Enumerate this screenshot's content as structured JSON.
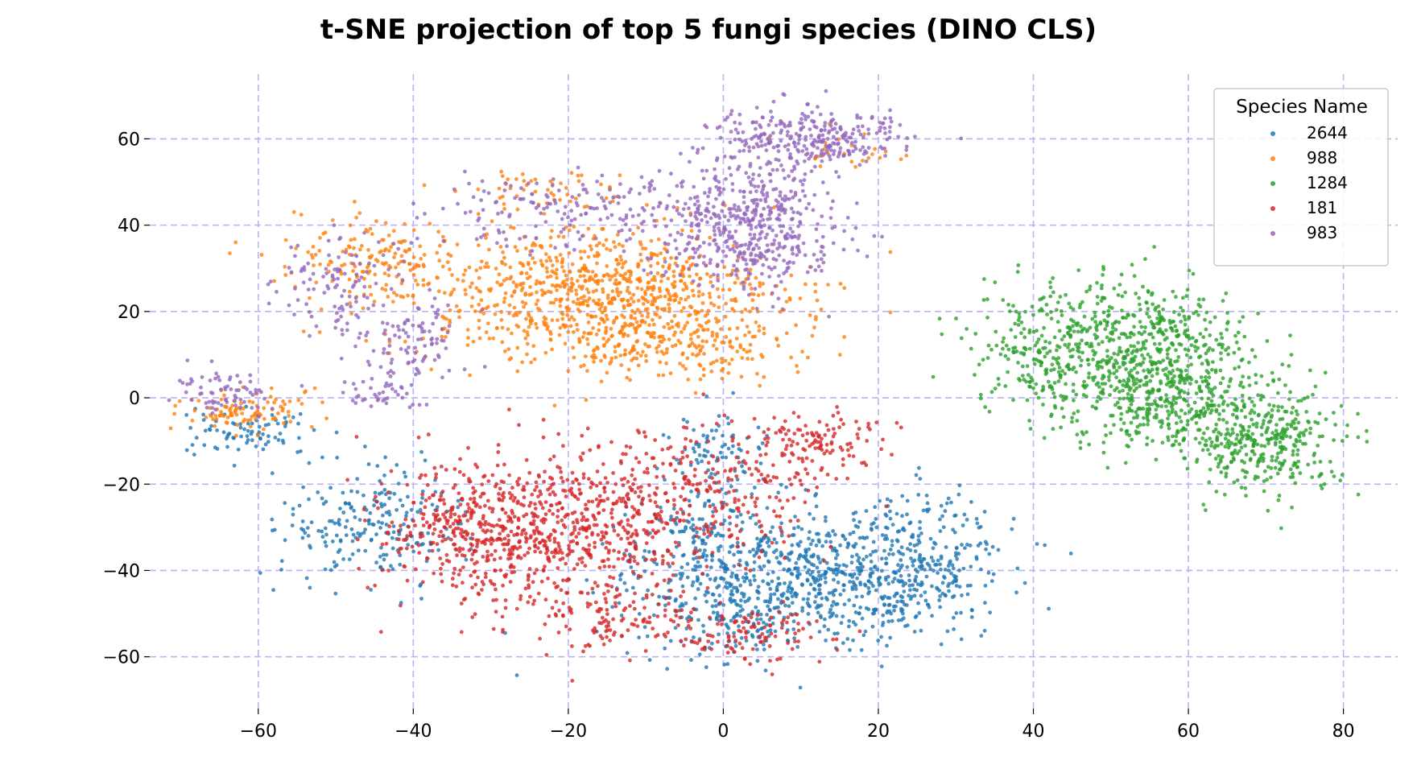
{
  "chart_data": {
    "type": "scatter",
    "title": "t-SNE projection of top 5 fungi species (DINO CLS)",
    "xlabel": "",
    "ylabel": "",
    "xlim": [
      -74,
      87
    ],
    "ylim": [
      -72,
      75
    ],
    "x_ticks": [
      -60,
      -40,
      -20,
      0,
      20,
      40,
      60,
      80
    ],
    "y_ticks": [
      -60,
      -40,
      -20,
      0,
      20,
      40,
      60
    ],
    "grid": true,
    "legend": {
      "title": "Species Name",
      "placement": "top-right"
    },
    "series": [
      {
        "name": "2644",
        "color": "#1f77b4",
        "clusters": [
          {
            "center": [
              12,
              -42
            ],
            "spread": [
              12,
              9
            ],
            "count": 650
          },
          {
            "center": [
              26,
              -36
            ],
            "spread": [
              6,
              9
            ],
            "count": 220
          },
          {
            "center": [
              -2,
              -33
            ],
            "spread": [
              6,
              8
            ],
            "count": 160
          },
          {
            "center": [
              -45,
              -29
            ],
            "spread": [
              7,
              8
            ],
            "count": 220
          },
          {
            "center": [
              -61,
              -8
            ],
            "spread": [
              5,
              3
            ],
            "count": 80
          },
          {
            "center": [
              -1,
              -13
            ],
            "spread": [
              4,
              5
            ],
            "count": 70
          },
          {
            "center": [
              0,
              -50
            ],
            "spread": [
              8,
              6
            ],
            "count": 120
          }
        ]
      },
      {
        "name": "988",
        "color": "#ff7f0e",
        "clusters": [
          {
            "center": [
              -16,
              23
            ],
            "spread": [
              14,
              9
            ],
            "count": 900
          },
          {
            "center": [
              -44,
              33
            ],
            "spread": [
              7,
              6
            ],
            "count": 160
          },
          {
            "center": [
              -62,
              -3
            ],
            "spread": [
              5,
              3
            ],
            "count": 100
          },
          {
            "center": [
              -5,
              12
            ],
            "spread": [
              9,
              5
            ],
            "count": 150
          },
          {
            "center": [
              -22,
              48
            ],
            "spread": [
              7,
              3
            ],
            "count": 50
          },
          {
            "center": [
              15,
              57
            ],
            "spread": [
              5,
              3
            ],
            "count": 25
          }
        ]
      },
      {
        "name": "1284",
        "color": "#2ca02c",
        "clusters": [
          {
            "center": [
              47,
              12
            ],
            "spread": [
              8,
              9
            ],
            "count": 520
          },
          {
            "center": [
              58,
              0
            ],
            "spread": [
              8,
              7
            ],
            "count": 420
          },
          {
            "center": [
              70,
              -10
            ],
            "spread": [
              6,
              7
            ],
            "count": 330
          },
          {
            "center": [
              60,
              14
            ],
            "spread": [
              5,
              5
            ],
            "count": 120
          }
        ]
      },
      {
        "name": "181",
        "color": "#d62728",
        "clusters": [
          {
            "center": [
              -22,
              -32
            ],
            "spread": [
              10,
              11
            ],
            "count": 620
          },
          {
            "center": [
              -4,
              -22
            ],
            "spread": [
              10,
              9
            ],
            "count": 320
          },
          {
            "center": [
              -34,
              -30
            ],
            "spread": [
              7,
              9
            ],
            "count": 220
          },
          {
            "center": [
              12,
              -10
            ],
            "spread": [
              5,
              4
            ],
            "count": 110
          },
          {
            "center": [
              3,
              -55
            ],
            "spread": [
              6,
              4
            ],
            "count": 100
          },
          {
            "center": [
              -12,
              -52
            ],
            "spread": [
              7,
              5
            ],
            "count": 100
          }
        ]
      },
      {
        "name": "983",
        "color": "#9467bd",
        "clusters": [
          {
            "center": [
              3,
              40
            ],
            "spread": [
              7,
              9
            ],
            "count": 520
          },
          {
            "center": [
              9,
              60
            ],
            "spread": [
              7,
              4
            ],
            "count": 220
          },
          {
            "center": [
              -20,
              43
            ],
            "spread": [
              10,
              5
            ],
            "count": 160
          },
          {
            "center": [
              -50,
              27
            ],
            "spread": [
              5,
              8
            ],
            "count": 110
          },
          {
            "center": [
              -40,
              14
            ],
            "spread": [
              4,
              5
            ],
            "count": 90
          },
          {
            "center": [
              -65,
              1
            ],
            "spread": [
              4,
              3
            ],
            "count": 70
          },
          {
            "center": [
              -44,
              1
            ],
            "spread": [
              3,
              2
            ],
            "count": 40
          },
          {
            "center": [
              17,
              60
            ],
            "spread": [
              4,
              3
            ],
            "count": 60
          }
        ]
      }
    ]
  }
}
